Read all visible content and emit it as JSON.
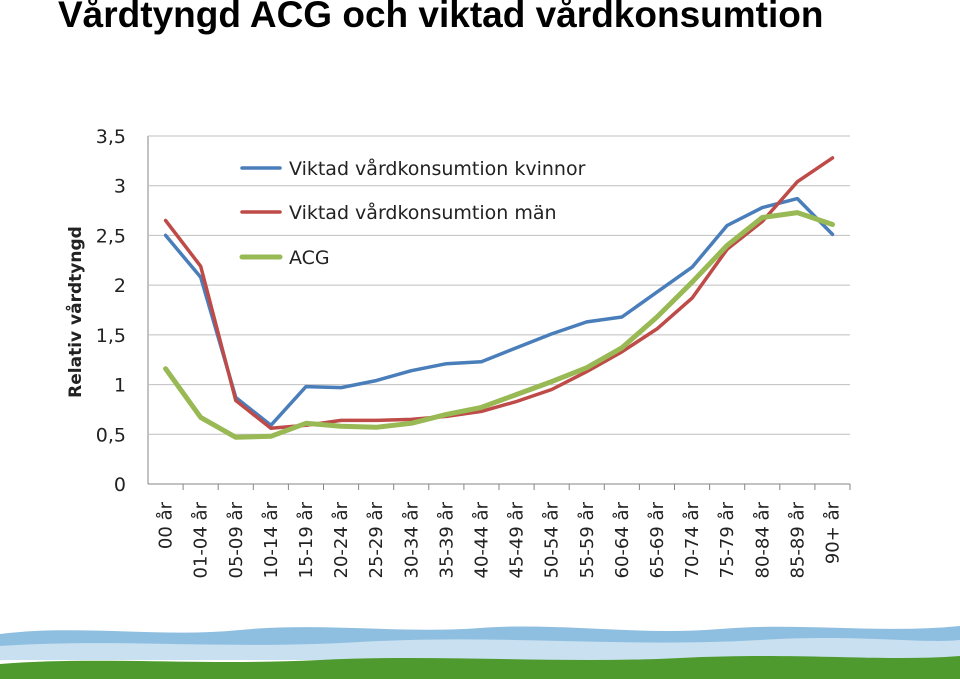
{
  "title": "Vårdtyngd ACG och viktad vårdkonsumtion",
  "colors": {
    "kvinnor": "#4a7ebb",
    "man": "#be4b48",
    "acg": "#98b954",
    "grid": "#bfbfbf",
    "footer_sky": "#8fbfe0",
    "footer_grass": "#4e9a2e"
  },
  "chart_data": {
    "type": "line",
    "title": "",
    "xlabel": "",
    "ylabel": "Relativ vårdtyngd",
    "ylim": [
      0,
      3.5
    ],
    "yticks": [
      0,
      0.5,
      1,
      1.5,
      2,
      2.5,
      3,
      3.5
    ],
    "ytick_labels": [
      "0",
      "0,5",
      "1",
      "1,5",
      "2",
      "2,5",
      "3",
      "3,5"
    ],
    "grid": true,
    "legend_position": "top-left",
    "categories": [
      "00 år",
      "01-04 år",
      "05-09 år",
      "10-14 år",
      "15-19 år",
      "20-24 år",
      "25-29 år",
      "30-34 år",
      "35-39 år",
      "40-44 år",
      "45-49 år",
      "50-54 år",
      "55-59 år",
      "60-64 år",
      "65-69 år",
      "70-74 år",
      "75-79 år",
      "80-84 år",
      "85-89 år",
      "90+ år"
    ],
    "series": [
      {
        "name": "Viktad vårdkonsumtion kvinnor",
        "color_key": "kvinnor",
        "values": [
          2.5,
          2.08,
          0.87,
          0.59,
          0.98,
          0.97,
          1.04,
          1.14,
          1.21,
          1.23,
          1.37,
          1.51,
          1.63,
          1.68,
          1.93,
          2.18,
          2.6,
          2.78,
          2.87,
          2.51
        ]
      },
      {
        "name": "Viktad vårdkonsumtion män",
        "color_key": "man",
        "values": [
          2.65,
          2.19,
          0.84,
          0.56,
          0.59,
          0.64,
          0.64,
          0.65,
          0.68,
          0.73,
          0.83,
          0.95,
          1.13,
          1.33,
          1.56,
          1.87,
          2.36,
          2.64,
          3.04,
          3.28
        ]
      },
      {
        "name": "ACG",
        "color_key": "acg",
        "values": [
          1.16,
          0.67,
          0.47,
          0.48,
          0.61,
          0.58,
          0.57,
          0.61,
          0.7,
          0.77,
          0.9,
          1.03,
          1.17,
          1.37,
          1.68,
          2.03,
          2.4,
          2.68,
          2.73,
          2.61
        ]
      }
    ]
  }
}
